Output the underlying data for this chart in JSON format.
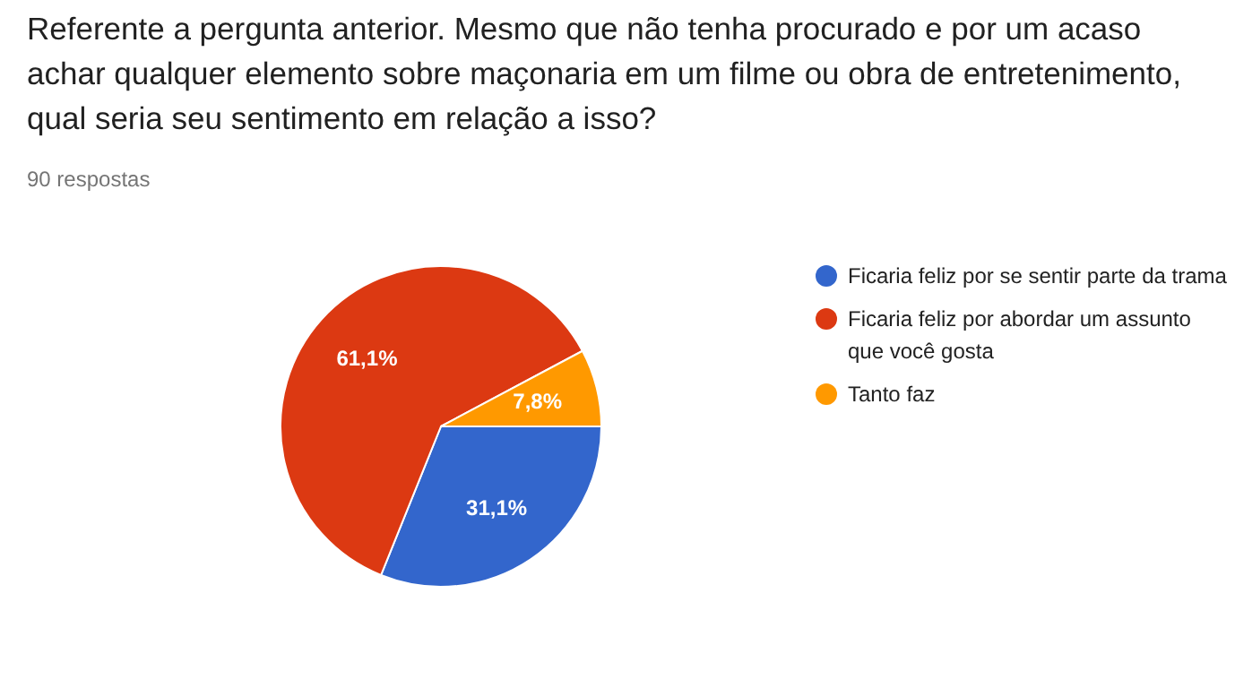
{
  "chart_data": {
    "type": "pie",
    "title": "Referente a pergunta anterior. Mesmo que não tenha procurado e por um acaso achar qualquer elemento sobre maçonaria em um filme ou obra de entretenimento, qual seria seu sentimento em relação a isso?",
    "subtitle": "90 respostas",
    "categories": [
      "Ficaria feliz por se sentir parte da trama",
      "Ficaria feliz por abordar um assunto que você gosta",
      "Tanto faz"
    ],
    "values": [
      31.1,
      61.1,
      7.8
    ],
    "colors": [
      "#3366cc",
      "#dc3912",
      "#ff9900"
    ],
    "value_labels": [
      "31,1%",
      "61,1%",
      "7,8%"
    ],
    "legend": "right"
  }
}
